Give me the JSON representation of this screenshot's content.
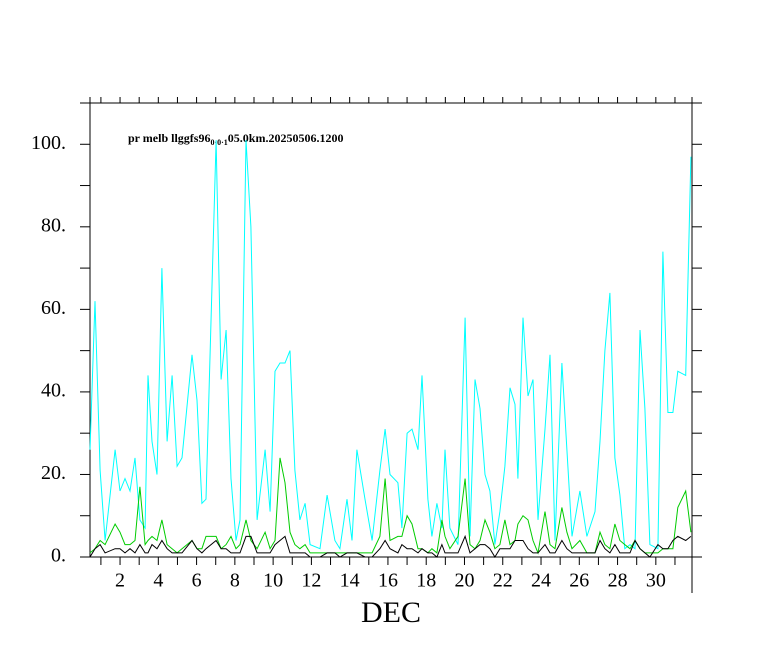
{
  "chart_data": {
    "type": "line",
    "title": "pr melb llggfs96",
    "title_subscript": "0·0·1",
    "title_suffix": "05.0km.20250506.1200",
    "xlabel": "DEC",
    "xlim": [
      0.43,
      31.89
    ],
    "xticks": [
      2,
      4,
      6,
      8,
      10,
      12,
      14,
      16,
      18,
      20,
      22,
      24,
      26,
      28,
      30
    ],
    "xminor_ticks": [
      1,
      3,
      5,
      7,
      9,
      11,
      13,
      15,
      17,
      19,
      21,
      23,
      25,
      27,
      29,
      31
    ],
    "ylim": [
      0,
      110
    ],
    "yticks": [
      {
        "value": 0,
        "label": "0."
      },
      {
        "value": 20,
        "label": "20."
      },
      {
        "value": 40,
        "label": "40."
      },
      {
        "value": 60,
        "label": "60."
      },
      {
        "value": 80,
        "label": "80."
      },
      {
        "value": 100,
        "label": "100."
      }
    ],
    "yminor_ticks": [
      10,
      30,
      50,
      70,
      90
    ],
    "x": [
      0.43,
      0.69,
      0.96,
      1.22,
      1.74,
      2,
      2.26,
      2.52,
      2.78,
      3.04,
      3.31,
      3.46,
      3.67,
      3.93,
      4.19,
      4.46,
      4.72,
      4.98,
      5.24,
      5.76,
      6.02,
      6.28,
      6.49,
      7.02,
      7.28,
      7.54,
      7.8,
      8.06,
      8.27,
      8.58,
      8.84,
      9.16,
      9.58,
      9.84,
      10.1,
      10.36,
      10.62,
      10.88,
      11.14,
      11.4,
      11.67,
      11.93,
      12.45,
      12.82,
      13.23,
      13.49,
      13.86,
      14.12,
      14.38,
      14.8,
      15.17,
      15.58,
      15.85,
      16.11,
      16.52,
      16.73,
      17.0,
      17.26,
      17.57,
      17.78,
      18.09,
      18.3,
      18.56,
      18.82,
      18.98,
      19.24,
      19.66,
      20.03,
      20.29,
      20.55,
      20.81,
      21.07,
      21.33,
      21.59,
      21.85,
      22.11,
      22.38,
      22.64,
      22.79,
      23.06,
      23.32,
      23.58,
      23.84,
      24.21,
      24.47,
      24.73,
      25.09,
      25.35,
      25.62,
      26.03,
      26.4,
      26.82,
      27.08,
      27.34,
      27.6,
      27.86,
      28.12,
      28.38,
      28.65,
      28.91,
      29.17,
      29.43,
      29.69,
      30.11,
      30.37,
      30.63,
      30.89,
      31.15,
      31.56,
      31.83
    ],
    "series": [
      {
        "color": "#00ffff",
        "values": [
          26,
          62,
          21,
          4,
          26,
          16,
          19,
          16,
          24,
          9,
          7,
          44,
          28,
          20,
          70,
          28,
          44,
          22,
          24,
          49,
          38,
          13,
          14,
          101,
          43,
          55,
          19,
          4,
          9,
          101,
          80,
          9,
          26,
          11,
          45,
          47,
          47,
          50,
          21,
          9,
          13,
          3,
          2,
          15,
          4,
          2,
          14,
          4,
          26,
          14,
          4,
          21,
          31,
          20,
          18,
          7,
          30,
          31,
          26,
          44,
          14,
          5,
          13,
          7,
          26,
          7,
          3,
          58,
          5,
          43,
          36,
          20,
          16,
          3,
          11,
          22,
          41,
          37,
          19,
          58,
          39,
          43,
          9,
          31,
          49,
          4,
          47,
          26,
          5,
          16,
          5,
          11,
          28,
          50,
          64,
          24,
          15,
          2,
          3,
          2,
          55,
          36,
          3,
          2,
          74,
          35,
          35,
          45,
          44,
          97
        ]
      },
      {
        "color": "#00cc00",
        "values": [
          1,
          2,
          4,
          3,
          8,
          6,
          3,
          3,
          4,
          17,
          3,
          4,
          5,
          4,
          9,
          3,
          2,
          1,
          2,
          4,
          2,
          2,
          5,
          5,
          2,
          3,
          5,
          2,
          3,
          9,
          4,
          2,
          6,
          2,
          4,
          24,
          18,
          6,
          3,
          2,
          3,
          1,
          1,
          1,
          1,
          1,
          1,
          1,
          1,
          1,
          1,
          5,
          19,
          4,
          5,
          5,
          10,
          8,
          2,
          2,
          1,
          2,
          1,
          9,
          5,
          2,
          5,
          19,
          3,
          2,
          4,
          9,
          6,
          2,
          3,
          9,
          3,
          4,
          8,
          10,
          9,
          4,
          1,
          11,
          3,
          2,
          12,
          6,
          2,
          4,
          1,
          1,
          6,
          3,
          2,
          8,
          4,
          3,
          2,
          4,
          2,
          1,
          1,
          1,
          2,
          2,
          2,
          12,
          16,
          6
        ]
      },
      {
        "color": "#000000",
        "values": [
          0,
          2,
          3,
          1,
          2,
          2,
          1,
          2,
          1,
          3,
          1,
          1,
          3,
          2,
          4,
          2,
          1,
          1,
          1,
          4,
          2,
          1,
          2,
          4,
          2,
          2,
          1,
          1,
          1,
          5,
          5,
          1,
          1,
          1,
          3,
          4,
          5,
          1,
          1,
          1,
          1,
          0,
          0,
          1,
          1,
          0,
          1,
          1,
          1,
          0,
          0,
          2,
          4,
          2,
          1,
          3,
          2,
          2,
          1,
          2,
          1,
          1,
          0,
          3,
          1,
          1,
          1,
          5,
          1,
          2,
          3,
          3,
          2,
          0,
          2,
          2,
          2,
          4,
          4,
          4,
          2,
          1,
          1,
          3,
          1,
          1,
          4,
          2,
          1,
          1,
          1,
          1,
          4,
          2,
          1,
          3,
          1,
          1,
          1,
          4,
          2,
          1,
          0,
          3,
          2,
          2,
          4,
          5,
          4,
          5
        ]
      }
    ]
  }
}
